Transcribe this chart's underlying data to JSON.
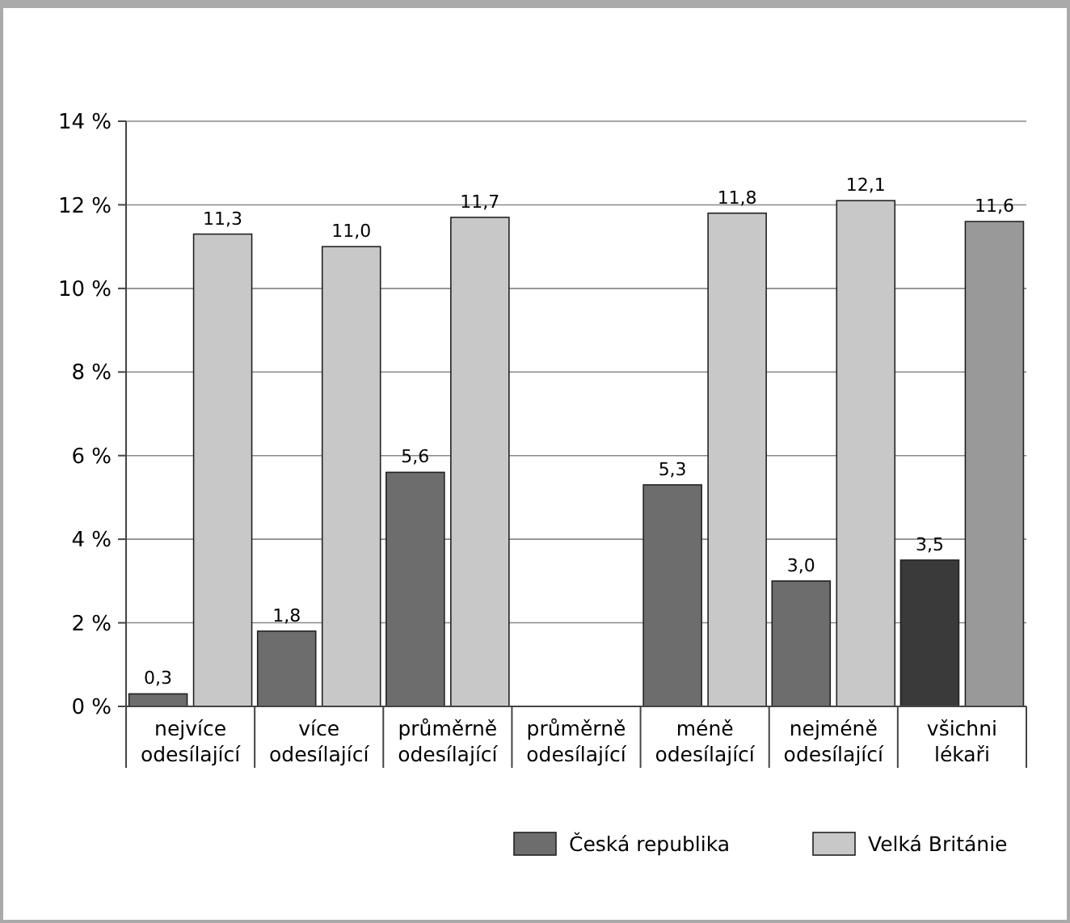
{
  "chart_data": {
    "type": "bar",
    "categories": [
      "nejvíce odesílající",
      "více odesílající",
      "průměrně odesílající",
      "průměrně odesílající",
      "méně odesílající",
      "nejméně odesílající",
      "všichni lékaři"
    ],
    "series": [
      {
        "name": "Česká republika",
        "color": "#6d6d6d",
        "colors": [
          "#6d6d6d",
          "#6d6d6d",
          "#6d6d6d",
          null,
          "#6d6d6d",
          "#6d6d6d",
          "#3a3a3a"
        ],
        "values": [
          0.3,
          1.8,
          5.6,
          null,
          5.3,
          3.0,
          3.5
        ],
        "value_labels": [
          "0,3",
          "1,8",
          "5,6",
          null,
          "5,3",
          "3,0",
          "3,5"
        ]
      },
      {
        "name": "Velká Británie",
        "color": "#c8c8c8",
        "colors": [
          "#c8c8c8",
          "#c8c8c8",
          "#c8c8c8",
          null,
          "#c8c8c8",
          "#c8c8c8",
          "#999999"
        ],
        "values": [
          11.3,
          11.0,
          11.7,
          null,
          11.8,
          12.1,
          11.6
        ],
        "value_labels": [
          "11,3",
          "11,0",
          "11,7",
          null,
          "11,8",
          "12,1",
          "11,6"
        ]
      }
    ],
    "ylim": [
      0,
      14
    ],
    "yticks": [
      {
        "value": 0,
        "label": "0 %"
      },
      {
        "value": 2,
        "label": "2 %"
      },
      {
        "value": 4,
        "label": "4 %"
      },
      {
        "value": 6,
        "label": "6 %"
      },
      {
        "value": 8,
        "label": "8 %"
      },
      {
        "value": 10,
        "label": "10 %"
      },
      {
        "value": 12,
        "label": "12 %"
      },
      {
        "value": 14,
        "label": "14 %"
      }
    ],
    "grid": "y",
    "legend": "bottom"
  }
}
